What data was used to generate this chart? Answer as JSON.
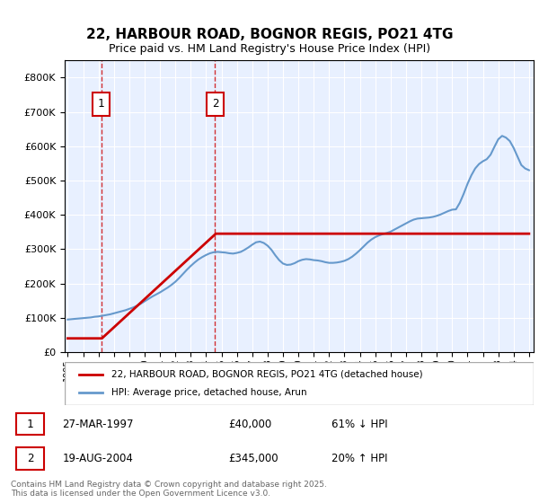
{
  "title": "22, HARBOUR ROAD, BOGNOR REGIS, PO21 4TG",
  "subtitle": "Price paid vs. HM Land Registry's House Price Index (HPI)",
  "xlabel": "",
  "ylabel": "",
  "ylim": [
    0,
    850000
  ],
  "yticks": [
    0,
    100000,
    200000,
    300000,
    400000,
    500000,
    600000,
    700000,
    800000
  ],
  "ytick_labels": [
    "£0",
    "£100K",
    "£200K",
    "£300K",
    "£400K",
    "£500K",
    "£600K",
    "£700K",
    "£800K"
  ],
  "background_color": "#ffffff",
  "plot_bg_color": "#e8f0ff",
  "grid_color": "#ffffff",
  "hpi_color": "#6699cc",
  "price_color": "#cc0000",
  "annotation_color": "#cc0000",
  "dashed_line_color": "#cc0000",
  "transaction1": {
    "date": "1997-03-27",
    "price": 40000,
    "label": "1",
    "hpi_pct": "61% ↓ HPI"
  },
  "transaction2": {
    "date": "2004-08-19",
    "price": 345000,
    "label": "2",
    "hpi_pct": "20% ↑ HPI"
  },
  "legend_property": "22, HARBOUR ROAD, BOGNOR REGIS, PO21 4TG (detached house)",
  "legend_hpi": "HPI: Average price, detached house, Arun",
  "footer": "Contains HM Land Registry data © Crown copyright and database right 2025.\nThis data is licensed under the Open Government Licence v3.0.",
  "table_row1": [
    "1",
    "27-MAR-1997",
    "£40,000",
    "61% ↓ HPI"
  ],
  "table_row2": [
    "2",
    "19-AUG-2004",
    "£345,000",
    "20% ↑ HPI"
  ],
  "hpi_data_x": [
    1995.0,
    1995.25,
    1995.5,
    1995.75,
    1996.0,
    1996.25,
    1996.5,
    1996.75,
    1997.0,
    1997.25,
    1997.5,
    1997.75,
    1998.0,
    1998.25,
    1998.5,
    1998.75,
    1999.0,
    1999.25,
    1999.5,
    1999.75,
    2000.0,
    2000.25,
    2000.5,
    2000.75,
    2001.0,
    2001.25,
    2001.5,
    2001.75,
    2002.0,
    2002.25,
    2002.5,
    2002.75,
    2003.0,
    2003.25,
    2003.5,
    2003.75,
    2004.0,
    2004.25,
    2004.5,
    2004.75,
    2005.0,
    2005.25,
    2005.5,
    2005.75,
    2006.0,
    2006.25,
    2006.5,
    2006.75,
    2007.0,
    2007.25,
    2007.5,
    2007.75,
    2008.0,
    2008.25,
    2008.5,
    2008.75,
    2009.0,
    2009.25,
    2009.5,
    2009.75,
    2010.0,
    2010.25,
    2010.5,
    2010.75,
    2011.0,
    2011.25,
    2011.5,
    2011.75,
    2012.0,
    2012.25,
    2012.5,
    2012.75,
    2013.0,
    2013.25,
    2013.5,
    2013.75,
    2014.0,
    2014.25,
    2014.5,
    2014.75,
    2015.0,
    2015.25,
    2015.5,
    2015.75,
    2016.0,
    2016.25,
    2016.5,
    2016.75,
    2017.0,
    2017.25,
    2017.5,
    2017.75,
    2018.0,
    2018.25,
    2018.5,
    2018.75,
    2019.0,
    2019.25,
    2019.5,
    2019.75,
    2020.0,
    2020.25,
    2020.5,
    2020.75,
    2021.0,
    2021.25,
    2021.5,
    2021.75,
    2022.0,
    2022.25,
    2022.5,
    2022.75,
    2023.0,
    2023.25,
    2023.5,
    2023.75,
    2024.0,
    2024.25,
    2024.5,
    2024.75,
    2025.0
  ],
  "hpi_data_y": [
    95000,
    96000,
    97000,
    98000,
    99000,
    100000,
    101000,
    103000,
    104000,
    106000,
    108000,
    110000,
    113000,
    116000,
    119000,
    122000,
    126000,
    130000,
    135000,
    141000,
    148000,
    155000,
    162000,
    168000,
    174000,
    181000,
    188000,
    196000,
    205000,
    216000,
    228000,
    240000,
    251000,
    261000,
    270000,
    277000,
    283000,
    288000,
    291000,
    292000,
    291000,
    290000,
    288000,
    287000,
    289000,
    292000,
    298000,
    305000,
    313000,
    320000,
    322000,
    318000,
    310000,
    298000,
    282000,
    268000,
    258000,
    254000,
    255000,
    259000,
    265000,
    269000,
    271000,
    270000,
    268000,
    267000,
    265000,
    262000,
    260000,
    260000,
    261000,
    263000,
    266000,
    271000,
    278000,
    287000,
    297000,
    308000,
    319000,
    328000,
    335000,
    340000,
    344000,
    347000,
    351000,
    357000,
    363000,
    369000,
    375000,
    381000,
    386000,
    389000,
    390000,
    391000,
    392000,
    394000,
    397000,
    401000,
    406000,
    411000,
    415000,
    416000,
    435000,
    461000,
    490000,
    515000,
    535000,
    548000,
    556000,
    562000,
    575000,
    598000,
    620000,
    630000,
    625000,
    615000,
    595000,
    570000,
    545000,
    535000,
    530000
  ],
  "price_line_x": [
    1995.0,
    1997.22,
    2004.63,
    2025.0
  ],
  "price_line_y": [
    40000,
    40000,
    345000,
    345000
  ],
  "xmin": 1994.8,
  "xmax": 2025.3
}
